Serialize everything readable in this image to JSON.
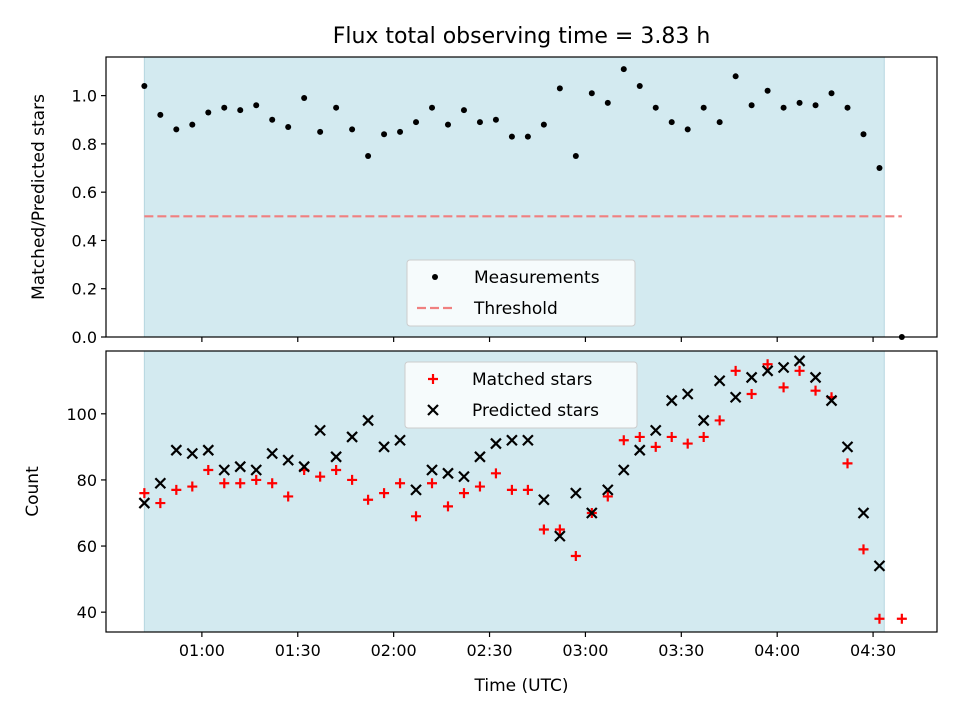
{
  "chart_data": {
    "title": "Flux total observing time = 3.83 h",
    "xlabel": "Time (UTC)",
    "x_unit": "minutes after 00:00 UTC",
    "xlim": [
      30,
      290
    ],
    "xticks": [
      {
        "t": 60,
        "label": "01:00"
      },
      {
        "t": 90,
        "label": "01:30"
      },
      {
        "t": 120,
        "label": "02:00"
      },
      {
        "t": 150,
        "label": "02:30"
      },
      {
        "t": 180,
        "label": "03:00"
      },
      {
        "t": 210,
        "label": "03:30"
      },
      {
        "t": 240,
        "label": "04:00"
      },
      {
        "t": 270,
        "label": "04:30"
      }
    ],
    "observing_span": [
      42,
      273.5
    ],
    "observing_color": "#d3eaf0",
    "panels": [
      {
        "type": "scatter",
        "ylabel": "Matched/Predicted stars",
        "ylim": [
          0,
          1.16
        ],
        "yticks": [
          0.0,
          0.2,
          0.4,
          0.6,
          0.8,
          1.0
        ],
        "ytick_labels": [
          "0.0",
          "0.2",
          "0.4",
          "0.6",
          "0.8",
          "1.0"
        ],
        "legend_position": "lower-center",
        "threshold": {
          "name": "Threshold",
          "value": 0.5,
          "color": "#f08080",
          "x_range": [
            42,
            279
          ]
        },
        "series": [
          {
            "name": "Measurements",
            "marker": "dot",
            "color": "#000000",
            "x": [
              42,
              47,
              52,
              57,
              62,
              67,
              72,
              77,
              82,
              87,
              92,
              97,
              102,
              107,
              112,
              117,
              122,
              127,
              132,
              137,
              142,
              147,
              152,
              157,
              162,
              167,
              172,
              177,
              182,
              187,
              192,
              197,
              202,
              207,
              212,
              217,
              222,
              227,
              232,
              237,
              242,
              247,
              252,
              257,
              262,
              267,
              272,
              279
            ],
            "y": [
              1.04,
              0.92,
              0.86,
              0.88,
              0.93,
              0.95,
              0.94,
              0.96,
              0.9,
              0.87,
              0.99,
              0.85,
              0.95,
              0.86,
              0.75,
              0.84,
              0.85,
              0.89,
              0.95,
              0.88,
              0.94,
              0.89,
              0.9,
              0.83,
              0.83,
              0.88,
              1.03,
              0.75,
              1.01,
              0.97,
              1.11,
              1.04,
              0.95,
              0.89,
              0.86,
              0.95,
              0.89,
              1.08,
              0.96,
              1.02,
              0.95,
              0.97,
              0.96,
              1.01,
              0.95,
              0.84,
              0.7,
              0.0
            ]
          }
        ]
      },
      {
        "type": "scatter",
        "ylabel": "Count",
        "ylim": [
          34,
          119
        ],
        "yticks": [
          40,
          60,
          80,
          100
        ],
        "ytick_labels": [
          "40",
          "60",
          "80",
          "100"
        ],
        "legend_position": "upper-center",
        "series": [
          {
            "name": "Matched stars",
            "marker": "plus",
            "color": "#ff0000",
            "x": [
              42,
              47,
              52,
              57,
              62,
              67,
              72,
              77,
              82,
              87,
              92,
              97,
              102,
              107,
              112,
              117,
              122,
              127,
              132,
              137,
              142,
              147,
              152,
              157,
              162,
              167,
              172,
              177,
              182,
              187,
              192,
              197,
              202,
              207,
              212,
              217,
              222,
              227,
              232,
              237,
              242,
              247,
              252,
              257,
              262,
              267,
              272,
              279
            ],
            "y": [
              76,
              73,
              77,
              78,
              83,
              79,
              79,
              80,
              79,
              75,
              83,
              81,
              83,
              80,
              74,
              76,
              79,
              69,
              79,
              72,
              76,
              78,
              82,
              77,
              77,
              65,
              65,
              57,
              70,
              75,
              92,
              93,
              90,
              93,
              91,
              93,
              98,
              113,
              106,
              115,
              108,
              113,
              107,
              105,
              85,
              59,
              38,
              38
            ]
          },
          {
            "name": "Predicted stars",
            "marker": "cross",
            "color": "#000000",
            "x": [
              42,
              47,
              52,
              57,
              62,
              67,
              72,
              77,
              82,
              87,
              92,
              97,
              102,
              107,
              112,
              117,
              122,
              127,
              132,
              137,
              142,
              147,
              152,
              157,
              162,
              167,
              172,
              177,
              182,
              187,
              192,
              197,
              202,
              207,
              212,
              217,
              222,
              227,
              232,
              237,
              242,
              247,
              252,
              257,
              262,
              267,
              272
            ],
            "y": [
              73,
              79,
              89,
              88,
              89,
              83,
              84,
              83,
              88,
              86,
              84,
              95,
              87,
              93,
              98,
              90,
              92,
              77,
              83,
              82,
              81,
              87,
              91,
              92,
              92,
              74,
              63,
              76,
              70,
              77,
              83,
              89,
              95,
              104,
              106,
              98,
              110,
              105,
              111,
              113,
              114,
              116,
              111,
              104,
              90,
              70,
              54
            ]
          }
        ]
      }
    ]
  }
}
